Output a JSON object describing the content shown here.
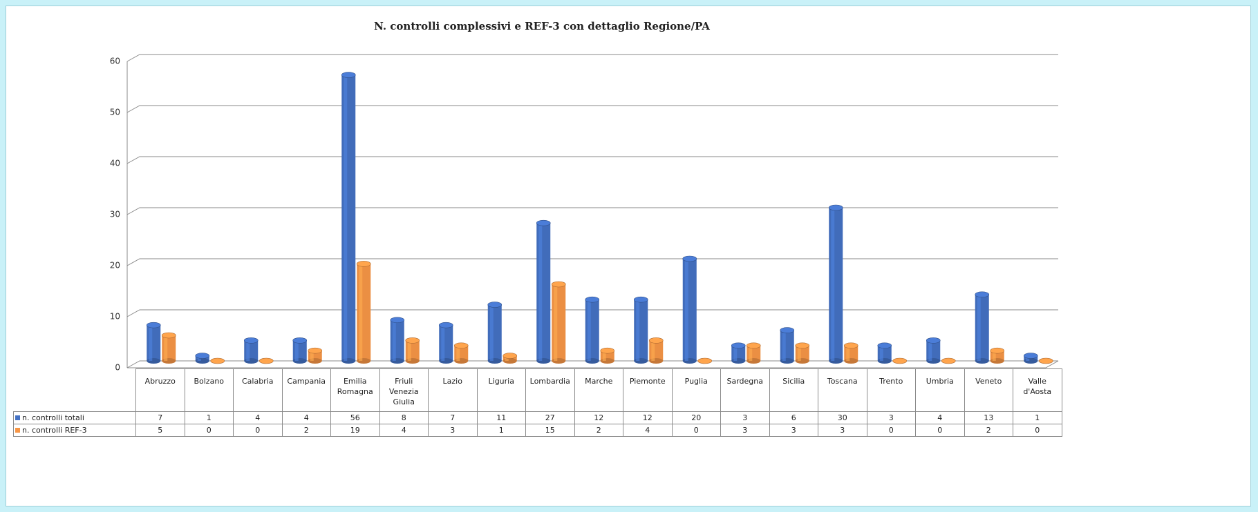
{
  "chart_data": {
    "type": "bar3d",
    "title": "N. controlli complessivi e REF-3 con dettaglio Regione/PA",
    "categories": [
      "Abruzzo",
      "Bolzano",
      "Calabria",
      "Campania",
      "Emilia Romagna",
      "Friuli Venezia Giulia",
      "Lazio",
      "Liguria",
      "Lombardia",
      "Marche",
      "Piemonte",
      "Puglia",
      "Sardegna",
      "Sicilia",
      "Toscana",
      "Trento",
      "Umbria",
      "Veneto",
      "Valle d'Aosta"
    ],
    "series": [
      {
        "name": "n. controlli totali",
        "color": "#4472c4",
        "values": [
          7,
          1,
          4,
          4,
          56,
          8,
          7,
          11,
          27,
          12,
          12,
          20,
          3,
          6,
          30,
          3,
          4,
          13,
          1
        ]
      },
      {
        "name": "n. controlli REF-3",
        "color": "#f79646",
        "values": [
          5,
          0,
          0,
          2,
          19,
          4,
          3,
          1,
          15,
          2,
          4,
          0,
          3,
          3,
          3,
          0,
          0,
          2,
          0
        ]
      }
    ],
    "ylim": [
      0,
      60
    ],
    "yticks": [
      0,
      10,
      20,
      30,
      40,
      50,
      60
    ],
    "grid": true,
    "legend": "table"
  }
}
